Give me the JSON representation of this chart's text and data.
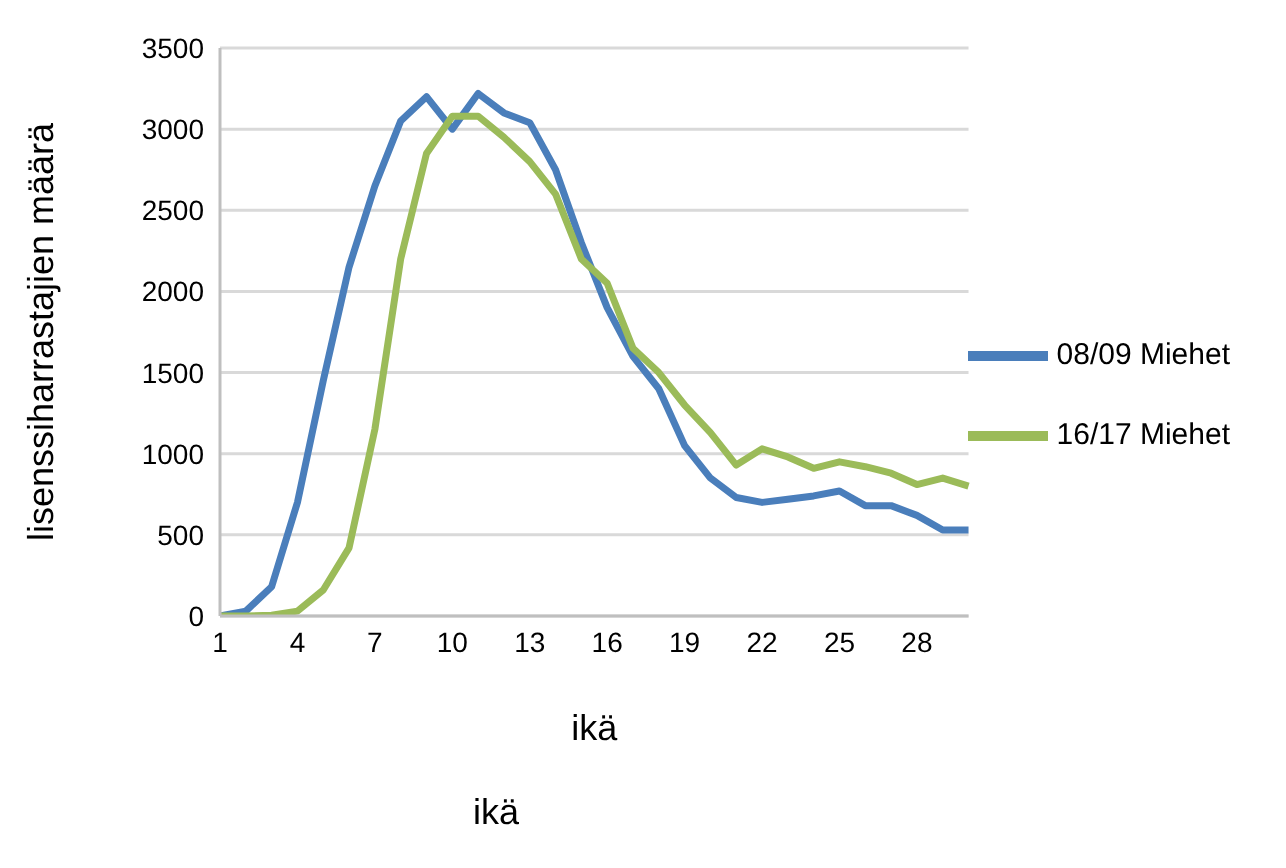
{
  "chart_data": {
    "type": "line",
    "xlabel": "ikä",
    "ylabel": "lisenssiharrastajien määrä",
    "annotations": [
      "ikä"
    ],
    "categories": [
      "1",
      null,
      null,
      "4",
      null,
      null,
      "7",
      null,
      null,
      "10",
      null,
      null,
      "13",
      null,
      null,
      "16",
      null,
      null,
      "19",
      null,
      null,
      "22",
      null,
      null,
      "25",
      null,
      null,
      "28",
      null,
      null
    ],
    "series": [
      {
        "name": "08/09 Miehet",
        "color": "#4a7ebb",
        "values": [
          0,
          30,
          180,
          700,
          1450,
          2150,
          2650,
          3050,
          3200,
          3000,
          3220,
          3100,
          3040,
          2750,
          2300,
          1900,
          1600,
          1400,
          1050,
          850,
          730,
          700,
          720,
          740,
          770,
          680,
          680,
          620,
          530,
          530
        ]
      },
      {
        "name": "16/17 Miehet",
        "color": "#9bbb59",
        "values": [
          0,
          0,
          5,
          30,
          160,
          420,
          1150,
          2200,
          2850,
          3080,
          3080,
          2950,
          2800,
          2600,
          2200,
          2050,
          1650,
          1500,
          1300,
          1130,
          930,
          1030,
          980,
          910,
          950,
          920,
          880,
          810,
          850,
          800
        ]
      }
    ],
    "ylim": [
      0,
      3500
    ],
    "yticks": [
      0,
      500,
      1000,
      1500,
      2000,
      2500,
      3000,
      3500
    ],
    "grid": "y",
    "legend": "right",
    "marker": "none",
    "line_style": "solid"
  }
}
